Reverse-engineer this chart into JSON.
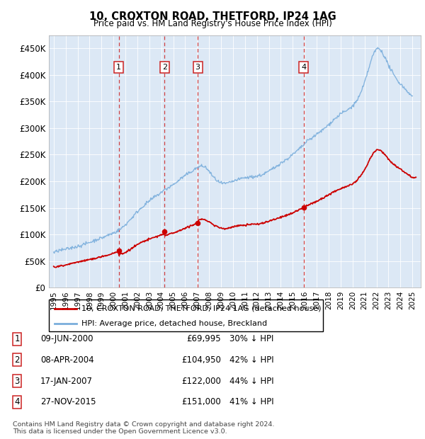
{
  "title1": "10, CROXTON ROAD, THETFORD, IP24 1AG",
  "title2": "Price paid vs. HM Land Registry's House Price Index (HPI)",
  "ylabel_ticks": [
    "£0",
    "£50K",
    "£100K",
    "£150K",
    "£200K",
    "£250K",
    "£300K",
    "£350K",
    "£400K",
    "£450K"
  ],
  "ytick_values": [
    0,
    50000,
    100000,
    150000,
    200000,
    250000,
    300000,
    350000,
    400000,
    450000
  ],
  "ylim": [
    0,
    475000
  ],
  "xlim_start": 1994.6,
  "xlim_end": 2025.7,
  "legend_line1": "10, CROXTON ROAD, THETFORD, IP24 1AG (detached house)",
  "legend_line2": "HPI: Average price, detached house, Breckland",
  "red_line_color": "#cc0000",
  "blue_line_color": "#7aaedc",
  "footer1": "Contains HM Land Registry data © Crown copyright and database right 2024.",
  "footer2": "This data is licensed under the Open Government Licence v3.0.",
  "transactions": [
    {
      "num": 1,
      "date": "09-JUN-2000",
      "price": 69995,
      "pct": "30%",
      "year": 2000.44
    },
    {
      "num": 2,
      "date": "08-APR-2004",
      "price": 104950,
      "pct": "42%",
      "year": 2004.27
    },
    {
      "num": 3,
      "date": "17-JAN-2007",
      "price": 122000,
      "pct": "44%",
      "year": 2007.05
    },
    {
      "num": 4,
      "date": "27-NOV-2015",
      "price": 151000,
      "pct": "41%",
      "year": 2015.91
    }
  ],
  "plot_bg": "#dce8f5"
}
